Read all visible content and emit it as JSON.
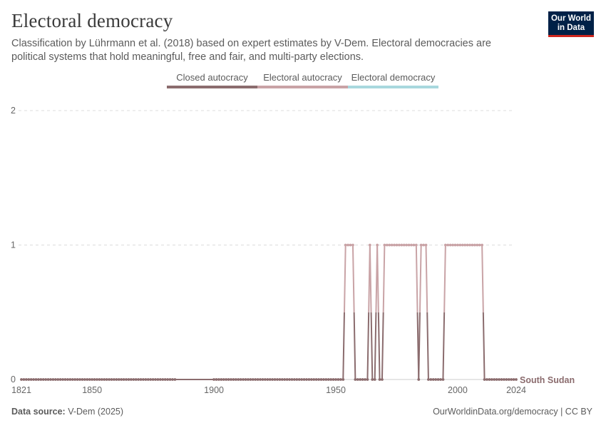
{
  "header": {
    "title": "Electoral democracy",
    "subtitle": "Classification by Lührmann et al. (2018) based on expert estimates by V-Dem. Electoral democracies are political systems that hold meaningful, free and fair, and multi-party elections."
  },
  "logo": {
    "line1": "Our World",
    "line2": "in Data"
  },
  "legend": [
    {
      "label": "Closed autocracy",
      "color": "#8b6c6e"
    },
    {
      "label": "Electoral autocracy",
      "color": "#c9a3a6"
    },
    {
      "label": "Electoral democracy",
      "color": "#a8d8de"
    }
  ],
  "footer": {
    "source_label": "Data source:",
    "source_value": "V-Dem (2025)",
    "link": "OurWorldinData.org/democracy",
    "license": "| CC BY"
  },
  "chart_data": {
    "type": "line",
    "title": "Electoral democracy",
    "xlim": [
      1821,
      2024
    ],
    "ylim": [
      0,
      2
    ],
    "x_ticks": [
      1821,
      1850,
      1900,
      1950,
      2000,
      2024
    ],
    "y_ticks": [
      0,
      1,
      2
    ],
    "grid": "horizontal dashed",
    "legend_position": "top-center",
    "series": [
      {
        "name": "South Sudan",
        "color_low": "#8b6c6e",
        "color_high": "#c9a3a6",
        "segments": [
          {
            "from": 1821,
            "to": 1884,
            "value": 0
          },
          {
            "from": 1900,
            "to": 1953,
            "value": 0
          },
          {
            "from": 1954,
            "to": 1957,
            "value": 1
          },
          {
            "from": 1958,
            "to": 1963,
            "value": 0
          },
          {
            "from": 1964,
            "to": 1964,
            "value": 1
          },
          {
            "from": 1965,
            "to": 1966,
            "value": 0
          },
          {
            "from": 1967,
            "to": 1967,
            "value": 1
          },
          {
            "from": 1968,
            "to": 1969,
            "value": 0
          },
          {
            "from": 1970,
            "to": 1983,
            "value": 1
          },
          {
            "from": 1984,
            "to": 1984,
            "value": 0
          },
          {
            "from": 1985,
            "to": 1987,
            "value": 1
          },
          {
            "from": 1988,
            "to": 1994,
            "value": 0
          },
          {
            "from": 1995,
            "to": 2010,
            "value": 1
          },
          {
            "from": 2011,
            "to": 2024,
            "value": 0
          }
        ]
      }
    ]
  }
}
